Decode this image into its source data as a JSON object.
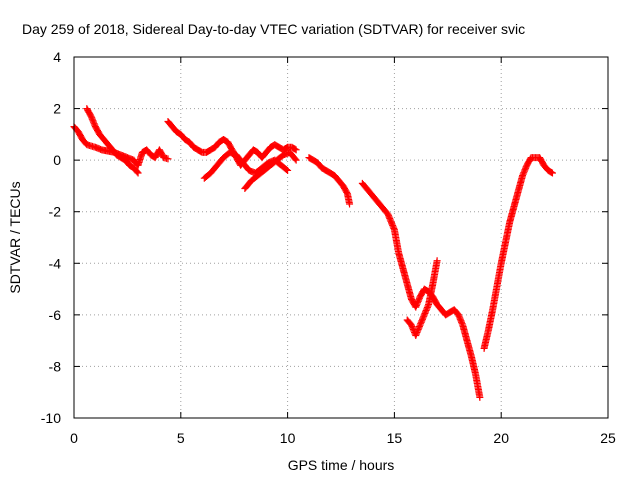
{
  "chart_data": {
    "type": "scatter",
    "title": "Day 259 of 2018, Sidereal Day-to-day VTEC variation (SDTVAR) for receiver svic",
    "xlabel": "GPS time / hours",
    "ylabel": "SDTVAR / TECUs",
    "xlim": [
      0,
      25
    ],
    "ylim": [
      -10,
      4
    ],
    "xticks": [
      0,
      5,
      10,
      15,
      20,
      25
    ],
    "yticks": [
      -10,
      -8,
      -6,
      -4,
      -2,
      0,
      2,
      4
    ],
    "xtick_labels": [
      "0",
      "5",
      "10",
      "15",
      "20",
      "25"
    ],
    "ytick_labels": [
      "-10",
      "-8",
      "-6",
      "-4",
      "-2",
      "0",
      "2",
      "4"
    ],
    "grid": true,
    "legend": "none",
    "marker": "plus",
    "color": "#ff0000",
    "series": [
      {
        "x": [
          0.0,
          0.2,
          0.4,
          0.6,
          0.8,
          1.0,
          1.3,
          1.6,
          1.9,
          2.2,
          2.5,
          2.8,
          3.0,
          3.2,
          3.4,
          3.6,
          3.8,
          4.0,
          4.2,
          4.4
        ],
        "y": [
          1.3,
          1.1,
          0.8,
          0.6,
          0.55,
          0.5,
          0.4,
          0.35,
          0.3,
          0.2,
          0.1,
          0.0,
          -0.2,
          0.3,
          0.4,
          0.2,
          0.1,
          0.4,
          0.1,
          0.05
        ]
      },
      {
        "x": [
          0.6,
          0.8,
          1.0,
          1.2,
          1.4,
          1.6,
          1.8,
          2.0,
          2.2,
          2.4,
          2.6,
          2.8,
          3.0
        ],
        "y": [
          2.0,
          1.7,
          1.3,
          1.0,
          0.8,
          0.6,
          0.4,
          0.2,
          0.1,
          0.0,
          -0.2,
          -0.3,
          -0.5
        ]
      },
      {
        "x": [
          4.4,
          4.6,
          4.8,
          5.0,
          5.2,
          5.4,
          5.6,
          5.8,
          6.0,
          6.2,
          6.4,
          6.6,
          6.8,
          7.0,
          7.2,
          7.4,
          7.6,
          7.8,
          8.0,
          8.2,
          8.4,
          8.6,
          8.8,
          9.0,
          9.2,
          9.4,
          9.6,
          9.8,
          10.0,
          10.2,
          10.4
        ],
        "y": [
          1.5,
          1.3,
          1.1,
          1.0,
          0.8,
          0.7,
          0.5,
          0.4,
          0.3,
          0.3,
          0.4,
          0.5,
          0.7,
          0.8,
          0.7,
          0.4,
          0.1,
          -0.2,
          0.0,
          0.2,
          0.4,
          0.3,
          0.1,
          0.3,
          0.5,
          0.6,
          0.5,
          0.4,
          0.5,
          0.5,
          0.4
        ]
      },
      {
        "x": [
          6.1,
          6.4,
          6.7,
          7.0,
          7.3,
          7.6,
          7.9,
          8.2,
          8.5,
          8.8,
          9.1,
          9.4,
          9.7,
          10.0
        ],
        "y": [
          -0.7,
          -0.5,
          -0.2,
          0.1,
          0.3,
          0.2,
          -0.1,
          -0.4,
          -0.5,
          -0.3,
          -0.1,
          0.0,
          -0.2,
          -0.4
        ]
      },
      {
        "x": [
          8.0,
          8.3,
          8.6,
          8.9,
          9.2,
          9.5,
          9.8,
          10.1,
          10.4
        ],
        "y": [
          -1.1,
          -0.8,
          -0.6,
          -0.4,
          -0.2,
          0.0,
          0.2,
          0.3,
          0.0
        ]
      },
      {
        "x": [
          11.0,
          11.2,
          11.4,
          11.6,
          11.8,
          12.0,
          12.2,
          12.4,
          12.6,
          12.8,
          12.9
        ],
        "y": [
          0.1,
          0.0,
          -0.1,
          -0.3,
          -0.4,
          -0.5,
          -0.6,
          -0.8,
          -1.0,
          -1.3,
          -1.7
        ]
      },
      {
        "x": [
          13.5,
          13.8,
          14.1,
          14.4,
          14.7,
          15.0,
          15.2,
          15.4,
          15.6,
          15.8,
          16.0,
          16.2,
          16.4,
          16.6,
          16.8,
          17.0,
          17.2,
          17.4,
          17.6,
          17.8,
          18.0,
          18.2,
          18.4,
          18.6,
          18.8,
          19.0
        ],
        "y": [
          -0.9,
          -1.2,
          -1.5,
          -1.8,
          -2.1,
          -2.7,
          -3.6,
          -4.2,
          -4.8,
          -5.4,
          -5.7,
          -5.3,
          -5.0,
          -5.1,
          -5.3,
          -5.6,
          -5.8,
          -6.0,
          -5.9,
          -5.8,
          -6.0,
          -6.4,
          -7.0,
          -7.6,
          -8.3,
          -9.2
        ]
      },
      {
        "x": [
          15.6,
          15.8,
          16.0,
          16.2,
          16.4,
          16.6,
          16.8,
          17.0
        ],
        "y": [
          -6.2,
          -6.4,
          -6.8,
          -6.4,
          -6.0,
          -5.6,
          -4.8,
          -3.9
        ]
      },
      {
        "x": [
          19.2,
          19.4,
          19.6,
          19.8,
          20.0,
          20.2,
          20.4,
          20.6,
          20.8,
          21.0,
          21.2,
          21.4,
          21.6,
          21.8,
          22.0,
          22.2,
          22.4
        ],
        "y": [
          -7.3,
          -6.6,
          -5.8,
          -4.9,
          -4.0,
          -3.2,
          -2.4,
          -1.8,
          -1.2,
          -0.6,
          -0.2,
          0.1,
          0.1,
          0.1,
          -0.2,
          -0.4,
          -0.5
        ]
      }
    ]
  }
}
